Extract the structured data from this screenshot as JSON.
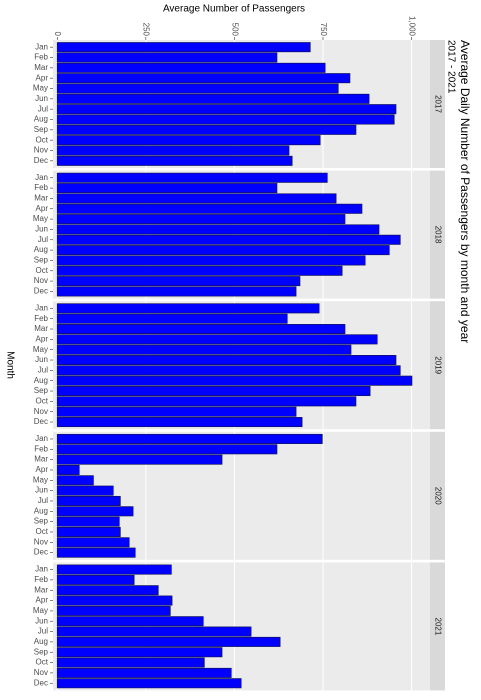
{
  "chart_data": {
    "type": "bar",
    "orientation": "horizontal",
    "title": "Average Daily Number of Passengers by month and year",
    "subtitle": "2017 - 2021",
    "x_label": "Average Number of Passengers",
    "y_label": "Month",
    "categories": [
      "Jan",
      "Feb",
      "Mar",
      "Apr",
      "May",
      "Jun",
      "Jul",
      "Aug",
      "Sep",
      "Oct",
      "Nov",
      "Dec"
    ],
    "color": "#0000ff",
    "series": [
      {
        "name": "2017",
        "values": [
          714,
          620,
          756,
          826,
          793,
          880,
          956,
          951,
          843,
          742,
          654,
          663
        ]
      },
      {
        "name": "2018",
        "values": [
          762,
          620,
          787,
          860,
          812,
          908,
          968,
          937,
          869,
          804,
          685,
          674
        ]
      },
      {
        "name": "2019",
        "values": [
          739,
          649,
          812,
          903,
          829,
          956,
          968,
          1001,
          883,
          843,
          674,
          691
        ]
      },
      {
        "name": "2020",
        "values": [
          748,
          620,
          465,
          62,
          102,
          158,
          178,
          214,
          175,
          178,
          203,
          220
        ]
      },
      {
        "name": "2021",
        "values": [
          322,
          217,
          285,
          324,
          319,
          412,
          547,
          629,
          465,
          415,
          491,
          519
        ]
      }
    ],
    "xlim": [
      -12,
      1052
    ],
    "xticks": [
      0,
      250,
      500,
      750,
      {
        "value": 1000,
        "label": "1,000"
      }
    ],
    "grid": true
  }
}
